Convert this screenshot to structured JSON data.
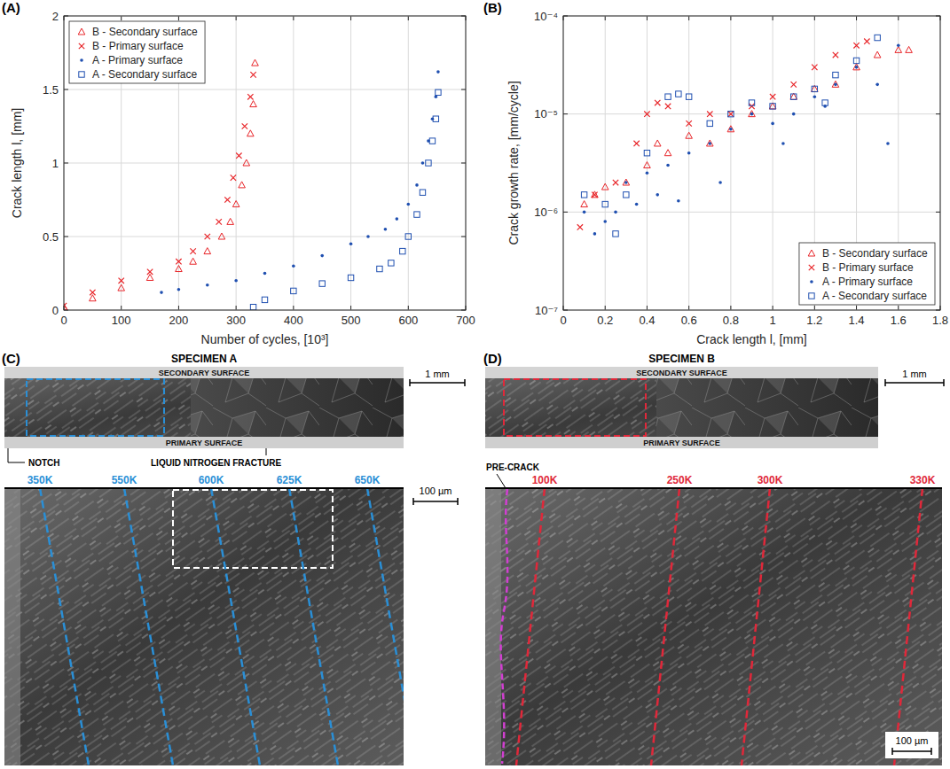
{
  "chart_data": [
    {
      "type": "scatter",
      "title": "(A)",
      "x_label": "Number of cycles, [10³]",
      "y_label": "Crack length l, [mm]",
      "xlim": [
        0,
        700
      ],
      "xticks": [
        0,
        100,
        200,
        300,
        400,
        500,
        600,
        700
      ],
      "ylim": [
        0,
        2
      ],
      "yticks": [
        0,
        0.5,
        1,
        1.5,
        2
      ],
      "grid": true,
      "legend": "upper left",
      "series": [
        {
          "name": "B - Secondary surface",
          "color": "#e8262a",
          "marker": "triangle",
          "x": [
            0,
            50,
            100,
            150,
            200,
            225,
            250,
            275,
            290,
            300,
            310,
            318,
            325,
            330,
            333
          ],
          "values": [
            0.02,
            0.08,
            0.15,
            0.22,
            0.28,
            0.33,
            0.4,
            0.5,
            0.6,
            0.72,
            0.85,
            1.0,
            1.2,
            1.4,
            1.68
          ]
        },
        {
          "name": "B - Primary surface",
          "color": "#e8262a",
          "marker": "x",
          "x": [
            0,
            50,
            100,
            150,
            200,
            225,
            250,
            270,
            285,
            295,
            305,
            315,
            325,
            330
          ],
          "values": [
            0.03,
            0.12,
            0.2,
            0.26,
            0.33,
            0.4,
            0.5,
            0.6,
            0.75,
            0.9,
            1.05,
            1.25,
            1.45,
            1.6
          ]
        },
        {
          "name": "A - Primary surface",
          "color": "#1f4fb0",
          "marker": "dot",
          "x": [
            170,
            200,
            250,
            300,
            350,
            400,
            450,
            500,
            530,
            560,
            580,
            600,
            615,
            625,
            635,
            642,
            648,
            652
          ],
          "values": [
            0.12,
            0.14,
            0.17,
            0.2,
            0.25,
            0.3,
            0.37,
            0.45,
            0.5,
            0.55,
            0.62,
            0.72,
            0.85,
            1.0,
            1.15,
            1.3,
            1.45,
            1.62
          ]
        },
        {
          "name": "A - Secondary surface",
          "color": "#1f4fb0",
          "marker": "square",
          "x": [
            330,
            350,
            400,
            450,
            500,
            550,
            570,
            590,
            600,
            615,
            625,
            635,
            642,
            648,
            652
          ],
          "values": [
            0.02,
            0.07,
            0.13,
            0.18,
            0.22,
            0.28,
            0.32,
            0.4,
            0.5,
            0.65,
            0.8,
            1.0,
            1.15,
            1.3,
            1.48
          ]
        }
      ]
    },
    {
      "type": "scatter",
      "title": "(B)",
      "x_label": "Crack length l, [mm]",
      "y_label": "Crack growth rate, [mm/cycle]",
      "xlim": [
        0,
        1.8
      ],
      "xticks": [
        0,
        0.2,
        0.4,
        0.6,
        0.8,
        1,
        1.2,
        1.4,
        1.6,
        1.8
      ],
      "ylim": [
        1e-07,
        0.0001
      ],
      "yticks": [
        {
          "value": 1e-07,
          "label": "10⁻⁷"
        },
        {
          "value": 1e-06,
          "label": "10⁻⁶"
        },
        {
          "value": 1e-05,
          "label": "10⁻⁵"
        },
        {
          "value": 0.0001,
          "label": "10⁻⁴"
        }
      ],
      "log": "y",
      "grid": true,
      "legend": "lower right",
      "series": [
        {
          "name": "B - Secondary surface",
          "color": "#e8262a",
          "marker": "triangle",
          "x": [
            0.1,
            0.15,
            0.2,
            0.3,
            0.4,
            0.45,
            0.5,
            0.6,
            0.7,
            0.8,
            0.9,
            1.0,
            1.1,
            1.2,
            1.3,
            1.4,
            1.5,
            1.6,
            1.65
          ],
          "values": [
            1.2e-06,
            1.5e-06,
            1.8e-06,
            2e-06,
            3e-06,
            5e-06,
            4e-06,
            6e-06,
            5e-06,
            7e-06,
            1e-05,
            1.2e-05,
            1.5e-05,
            1.8e-05,
            2e-05,
            3e-05,
            4e-05,
            4.5e-05,
            4.5e-05
          ]
        },
        {
          "name": "B - Primary surface",
          "color": "#e8262a",
          "marker": "x",
          "x": [
            0.08,
            0.15,
            0.25,
            0.35,
            0.4,
            0.45,
            0.5,
            0.6,
            0.7,
            0.8,
            0.9,
            1.0,
            1.1,
            1.2,
            1.3,
            1.4,
            1.45
          ],
          "values": [
            7e-07,
            1.5e-06,
            2e-06,
            5e-06,
            1e-05,
            1.3e-05,
            1.2e-05,
            8e-06,
            1e-05,
            1e-05,
            1.2e-05,
            1.5e-05,
            2e-05,
            3e-05,
            4e-05,
            5e-05,
            5.5e-05
          ]
        },
        {
          "name": "A - Primary surface",
          "color": "#1f4fb0",
          "marker": "dot",
          "x": [
            0.1,
            0.15,
            0.2,
            0.25,
            0.3,
            0.35,
            0.4,
            0.45,
            0.5,
            0.55,
            0.6,
            0.7,
            0.75,
            0.8,
            0.9,
            1.0,
            1.05,
            1.1,
            1.2,
            1.25,
            1.3,
            1.4,
            1.5,
            1.55,
            1.6
          ],
          "values": [
            1e-06,
            6e-07,
            8e-07,
            1e-06,
            2e-06,
            1.2e-06,
            2.5e-06,
            1.5e-06,
            3e-06,
            1.3e-06,
            4e-06,
            5e-06,
            2e-06,
            7e-06,
            1e-05,
            8e-06,
            5e-06,
            1e-05,
            1.5e-05,
            1.2e-05,
            2e-05,
            3e-05,
            2e-05,
            5e-06,
            5e-05
          ]
        },
        {
          "name": "A - Secondary surface",
          "color": "#1f4fb0",
          "marker": "square",
          "x": [
            0.1,
            0.2,
            0.25,
            0.3,
            0.4,
            0.5,
            0.55,
            0.6,
            0.7,
            0.8,
            0.9,
            1.0,
            1.1,
            1.2,
            1.25,
            1.3,
            1.4,
            1.5
          ],
          "values": [
            1.5e-06,
            1.2e-06,
            6e-07,
            1.5e-06,
            4e-06,
            1.5e-05,
            1.6e-05,
            1.5e-05,
            8e-06,
            1e-05,
            1.3e-05,
            1.2e-05,
            1.5e-05,
            1.8e-05,
            1.3e-05,
            2.5e-05,
            3.5e-05,
            6e-05
          ]
        }
      ]
    }
  ],
  "images": [
    {
      "title": "(C)",
      "heading": "SPECIMEN A",
      "secondary": "SECONDARY SURFACE",
      "primary": "PRIMARY SURFACE",
      "scale_overview": "1 mm",
      "scale_detail": "100 µm",
      "color": "#2a8fd6",
      "notes": [
        "NOTCH",
        "LIQUID NITROGEN FRACTURE"
      ],
      "marks": [
        "350K",
        "550K",
        "600K",
        "625K",
        "650K"
      ]
    },
    {
      "title": "(D)",
      "heading": "SPECIMEN B",
      "secondary": "SECONDARY SURFACE",
      "primary": "PRIMARY SURFACE",
      "scale_overview": "1 mm",
      "scale_detail": "100 µm",
      "color": "#e0283a",
      "notes": [
        "PRE-CRACK"
      ],
      "marks": [
        "100K",
        "250K",
        "300K",
        "330K"
      ]
    }
  ]
}
